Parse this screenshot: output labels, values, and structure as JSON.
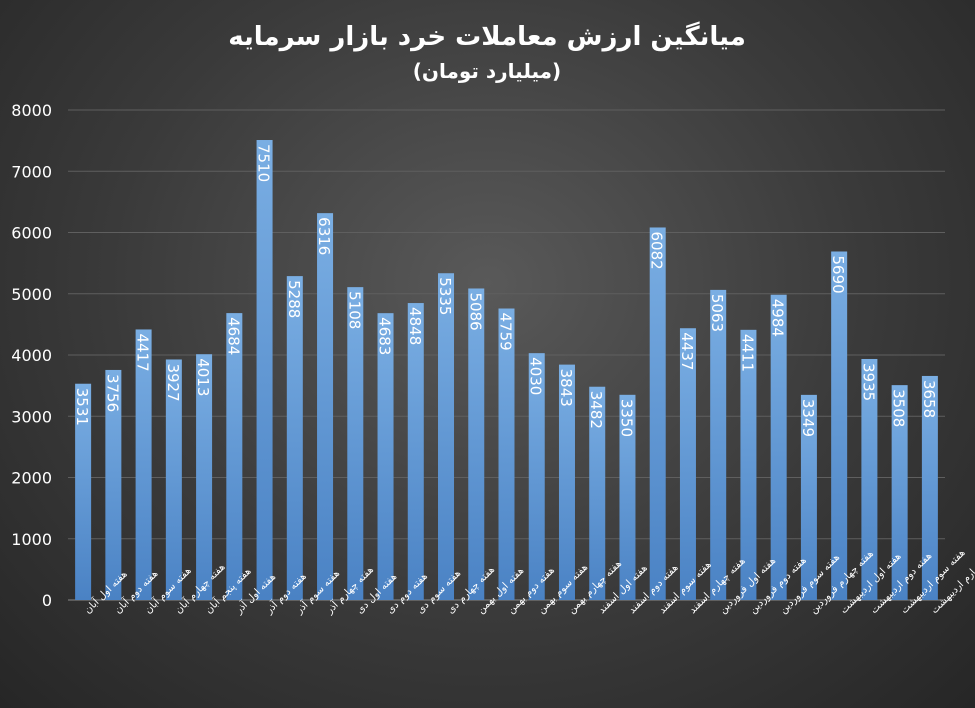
{
  "chart_data": {
    "type": "bar",
    "title": "میانگین ارزش معاملات خرد بازار سرمایه",
    "subtitle": "(میلیارد تومان)",
    "xlabel": "",
    "ylabel": "",
    "ylim": [
      0,
      8000
    ],
    "yticks": [
      0,
      1000,
      2000,
      3000,
      4000,
      5000,
      6000,
      7000,
      8000
    ],
    "grid": true,
    "colors": {
      "bar_top": "#74a9e0",
      "bar_bottom": "#4a82c4",
      "text": "#ffffff",
      "grid": "#5f5f5f"
    },
    "categories": [
      "هفته اول آبان",
      "هفته دوم آبان",
      "هفته سوم آبان",
      "هفته چهارم آبان",
      "هفته پنجم آبان",
      "هفته اول آذر",
      "هفته دوم آذر",
      "هفته سوم آذر",
      "هفته چهارم آذر",
      "هفته اول دی",
      "هفته دوم دی",
      "هفته سوم دی",
      "هفته چهارم دی",
      "هفته اول بهمن",
      "هفته دوم بهمن",
      "هفته سوم بهمن",
      "هفته چهارم بهمن",
      "هفته اول اسفند",
      "هفته دوم اسفند",
      "هفته سوم اسفند",
      "هفته چهارم اسفند",
      "هفته اول فروردین",
      "هفته دوم فروردین",
      "هفته سوم فروردین",
      "هفته چهارم فروردین",
      "هفته اول اردیبهشت",
      "هفته دوم اردیبهشت",
      "هفته سوم اردیبهشت",
      "هفته چهارم اردیبهشت"
    ],
    "values": [
      3531,
      3756,
      4417,
      3927,
      4013,
      4684,
      7510,
      5288,
      6316,
      5108,
      4683,
      4848,
      5335,
      5086,
      4759,
      4030,
      3843,
      3482,
      3350,
      6082,
      4437,
      5063,
      4411,
      4984,
      3349,
      5690,
      3935,
      3508,
      3658
    ]
  }
}
